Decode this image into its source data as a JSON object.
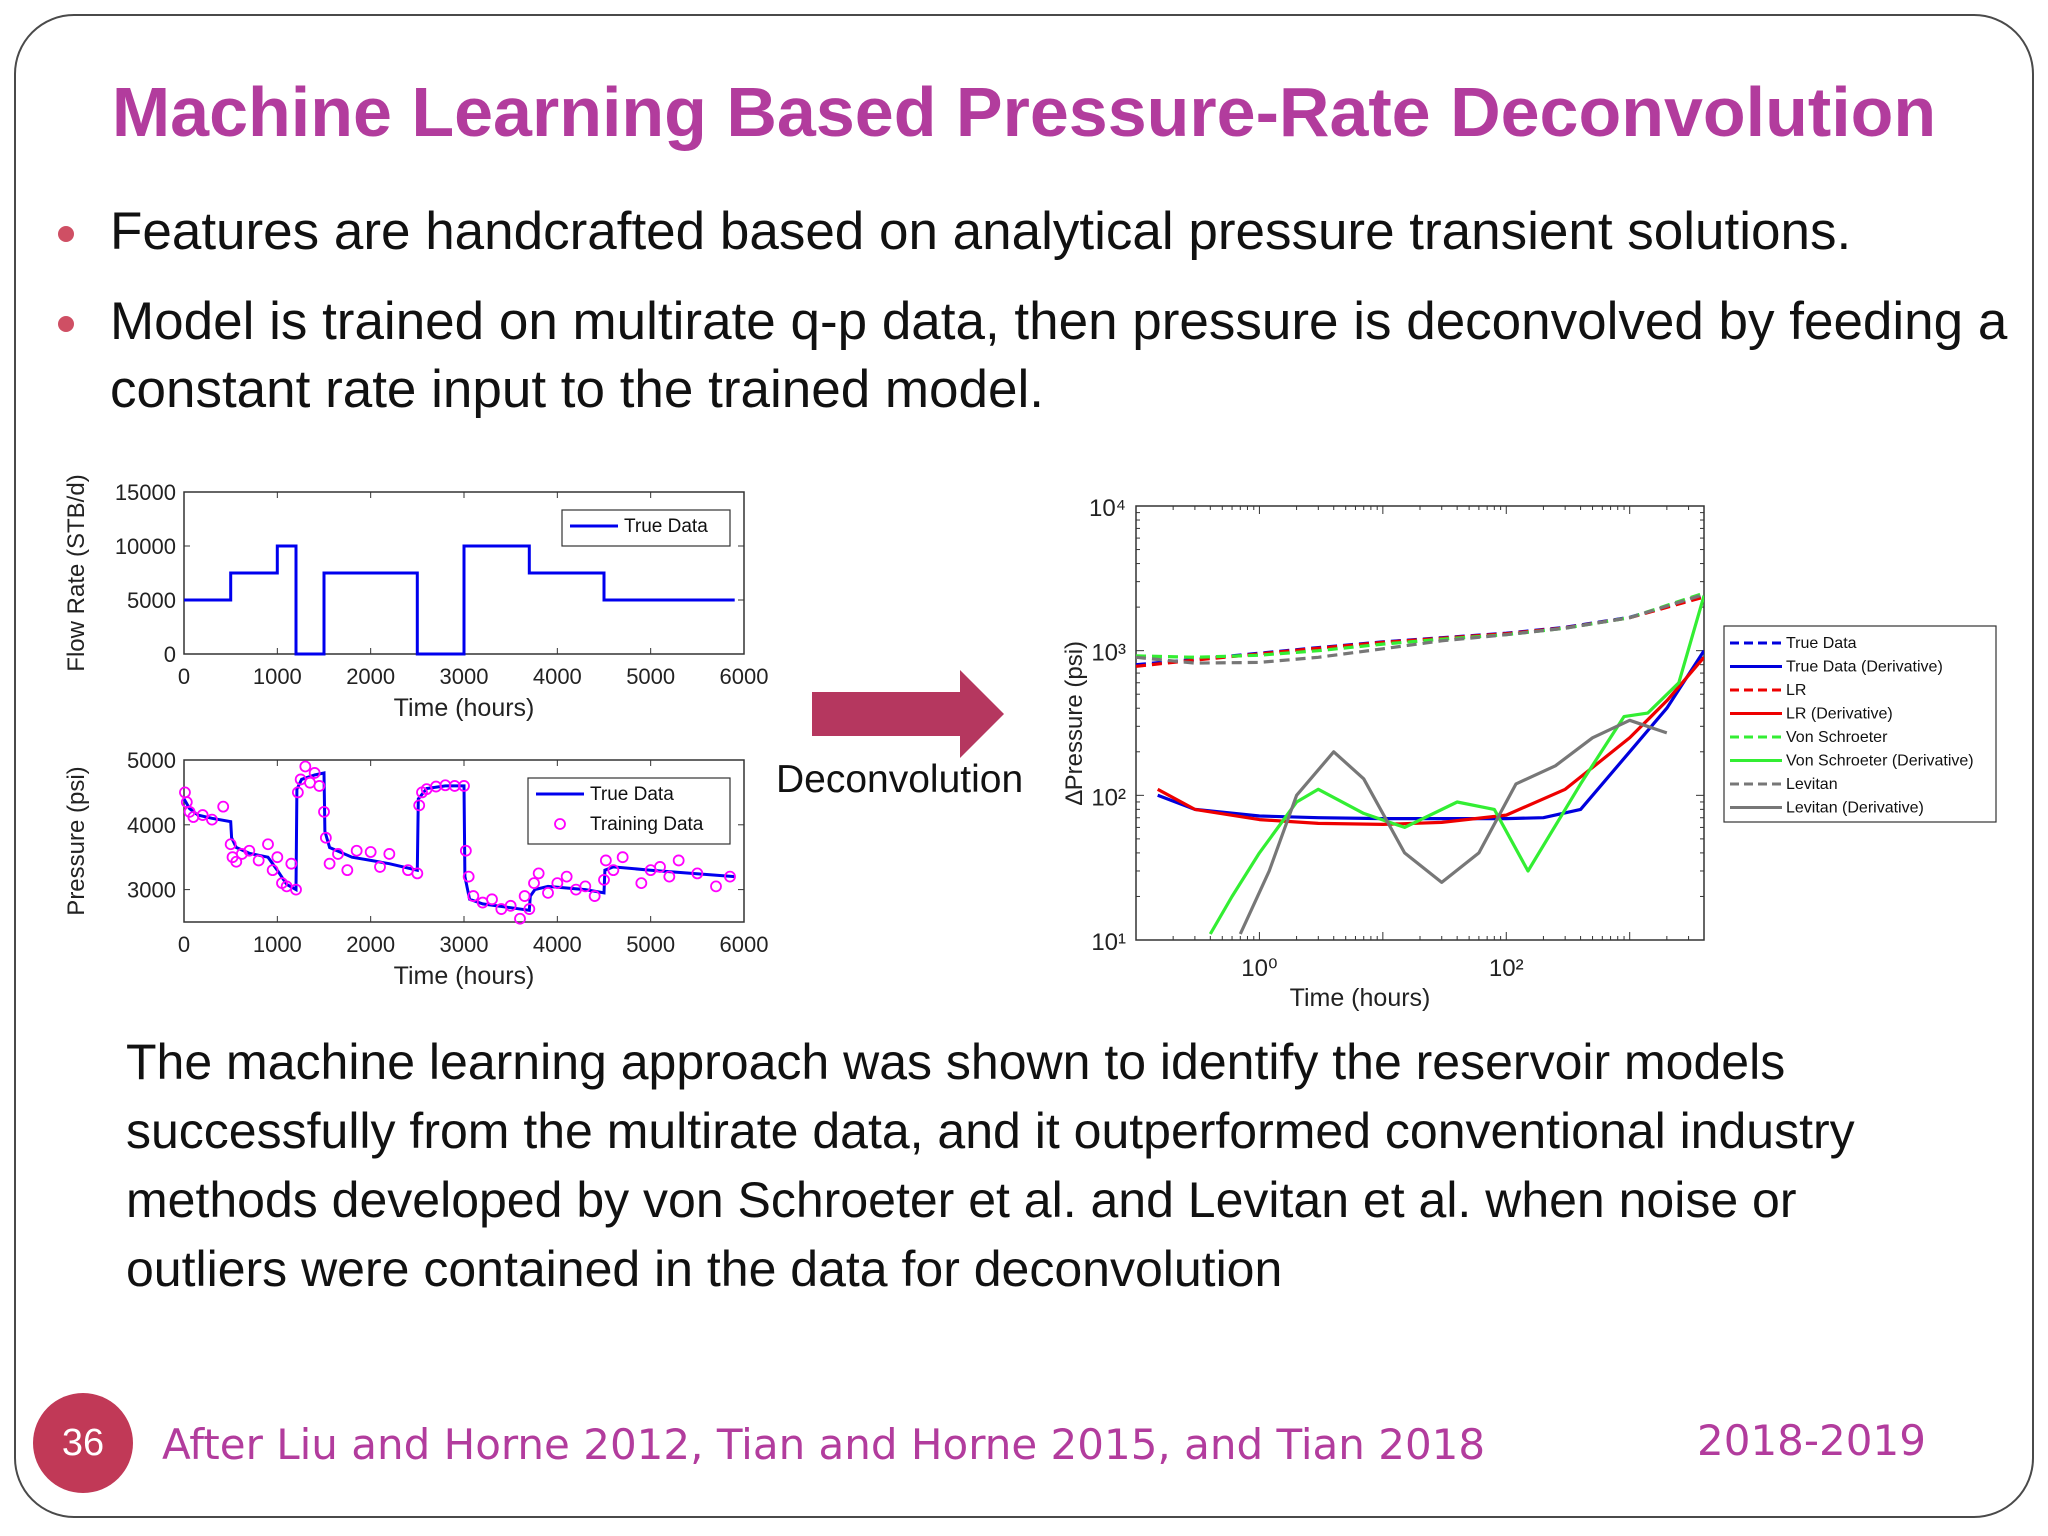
{
  "slide": {
    "title": "Machine Learning Based Pressure-Rate Deconvolution",
    "bullets": [
      "Features are handcrafted based on analytical pressure transient solutions.",
      "Model is trained on multirate q-p data, then pressure is deconvolved by feeding a constant rate input to the trained model."
    ],
    "arrow_label": "Deconvolution",
    "paragraph": "The machine learning approach was shown to identify the reservoir models successfully from the multirate data, and it outperformed conventional industry methods developed by von Schroeter et al. and Levitan et al. when noise or outliers were contained in the data for deconvolution",
    "footer": "After Liu and Horne 2012, Tian and Horne 2015, and Tian 2018",
    "year": "2018-2019",
    "page_number": "36",
    "colors": {
      "title": "#b23c9d",
      "accent": "#c13957",
      "bullet": "#cf4f64",
      "arrow": "#b5375f"
    }
  },
  "chart_data": [
    {
      "type": "line",
      "title": "",
      "xlabel": "Time (hours)",
      "ylabel": "Flow Rate (STB/d)",
      "xlim": [
        0,
        6000
      ],
      "ylim": [
        0,
        15000
      ],
      "xticks": [
        "0",
        "1000",
        "2000",
        "3000",
        "4000",
        "5000",
        "6000"
      ],
      "yticks": [
        "0",
        "5000",
        "10000",
        "15000"
      ],
      "legend": [
        "True Data"
      ],
      "series": [
        {
          "name": "True Data",
          "color": "#0000ee",
          "x": [
            0,
            500,
            500,
            1000,
            1000,
            1200,
            1200,
            1500,
            1500,
            2500,
            2500,
            3000,
            3000,
            3700,
            3700,
            4500,
            4500,
            5900
          ],
          "y": [
            5000,
            5000,
            7500,
            7500,
            10000,
            10000,
            0,
            0,
            7500,
            7500,
            0,
            0,
            10000,
            10000,
            7500,
            7500,
            5000,
            5000
          ]
        }
      ]
    },
    {
      "type": "scatter",
      "title": "",
      "xlabel": "Time (hours)",
      "ylabel": "Pressure (psi)",
      "xlim": [
        0,
        6000
      ],
      "ylim": [
        2500,
        5000
      ],
      "xticks": [
        "0",
        "1000",
        "2000",
        "3000",
        "4000",
        "5000",
        "6000"
      ],
      "yticks": [
        "3000",
        "4000",
        "5000"
      ],
      "legend": [
        "True Data",
        "Training Data"
      ],
      "series": [
        {
          "name": "True Data",
          "color": "#0000ee",
          "x": [
            0,
            60,
            150,
            300,
            500,
            510,
            560,
            700,
            900,
            1000,
            1100,
            1200,
            1210,
            1260,
            1400,
            1500,
            1510,
            1560,
            1800,
            2000,
            2200,
            2500,
            2510,
            2600,
            2800,
            3000,
            3010,
            3060,
            3200,
            3500,
            3700,
            3710,
            3760,
            3900,
            4300,
            4500,
            4510,
            4600,
            5000,
            5900
          ],
          "y": [
            4400,
            4250,
            4150,
            4100,
            4050,
            3800,
            3650,
            3560,
            3500,
            3300,
            3080,
            3000,
            4550,
            4700,
            4770,
            4800,
            3900,
            3650,
            3500,
            3450,
            3400,
            3300,
            4400,
            4560,
            4600,
            4600,
            3200,
            2850,
            2780,
            2720,
            2680,
            2900,
            3000,
            3050,
            3000,
            2950,
            3300,
            3350,
            3300,
            3200
          ]
        },
        {
          "name": "Training Data",
          "color": "#ff00ff",
          "x": [
            10,
            30,
            60,
            100,
            200,
            300,
            420,
            500,
            520,
            560,
            620,
            700,
            800,
            900,
            950,
            1000,
            1050,
            1100,
            1150,
            1200,
            1220,
            1250,
            1300,
            1350,
            1400,
            1450,
            1500,
            1520,
            1560,
            1650,
            1750,
            1850,
            2000,
            2100,
            2200,
            2400,
            2500,
            2520,
            2550,
            2600,
            2700,
            2800,
            2900,
            3000,
            3020,
            3050,
            3100,
            3200,
            3300,
            3400,
            3500,
            3600,
            3650,
            3700,
            3750,
            3800,
            3900,
            4000,
            4100,
            4200,
            4300,
            4400,
            4500,
            4520,
            4600,
            4700,
            4900,
            5000,
            5100,
            5200,
            5300,
            5500,
            5700,
            5850
          ],
          "y": [
            4500,
            4350,
            4200,
            4120,
            4150,
            4080,
            4280,
            3700,
            3500,
            3430,
            3550,
            3600,
            3450,
            3700,
            3300,
            3500,
            3100,
            3050,
            3400,
            3000,
            4500,
            4700,
            4900,
            4650,
            4800,
            4600,
            4200,
            3800,
            3400,
            3550,
            3300,
            3600,
            3580,
            3350,
            3550,
            3300,
            3250,
            4300,
            4500,
            4550,
            4590,
            4610,
            4600,
            4600,
            3600,
            3200,
            2900,
            2800,
            2850,
            2700,
            2750,
            2550,
            2900,
            2700,
            3100,
            3250,
            2950,
            3100,
            3200,
            3000,
            3050,
            2900,
            3150,
            3450,
            3300,
            3500,
            3100,
            3300,
            3350,
            3200,
            3450,
            3250,
            3050,
            3200
          ]
        }
      ]
    },
    {
      "type": "line",
      "title": "",
      "xlabel": "Time (hours)",
      "ylabel": "∆Pressure (psi)",
      "xscale": "log",
      "yscale": "log",
      "xlim": [
        0.1,
        4000
      ],
      "ylim": [
        10,
        10000
      ],
      "xticks": [
        "10⁰",
        "10²"
      ],
      "yticks": [
        "10¹",
        "10²",
        "10³",
        "10⁴"
      ],
      "legend": [
        "True Data",
        "True Data (Derivative)",
        "LR",
        "LR (Derivative)",
        "Von Schroeter",
        "Von Schroeter (Derivative)",
        "Levitan",
        "Levitan (Derivative)"
      ],
      "series": [
        {
          "name": "True Data",
          "color": "#0000dd",
          "dash": true,
          "x": [
            0.1,
            0.3,
            1,
            3,
            10,
            30,
            100,
            300,
            1000,
            4000
          ],
          "y": [
            800,
            870,
            960,
            1050,
            1150,
            1230,
            1320,
            1450,
            1700,
            2400
          ]
        },
        {
          "name": "True Data (Derivative)",
          "color": "#0000dd",
          "dash": false,
          "x": [
            0.15,
            0.3,
            1,
            3,
            10,
            30,
            100,
            200,
            400,
            1000,
            2000,
            4000
          ],
          "y": [
            100,
            80,
            72,
            70,
            69,
            69,
            69,
            70,
            80,
            200,
            400,
            1000
          ]
        },
        {
          "name": "LR",
          "color": "#ee0000",
          "dash": true,
          "x": [
            0.1,
            0.3,
            1,
            3,
            10,
            30,
            100,
            300,
            1000,
            4000
          ],
          "y": [
            780,
            860,
            950,
            1040,
            1140,
            1220,
            1310,
            1440,
            1690,
            2350
          ]
        },
        {
          "name": "LR (Derivative)",
          "color": "#ee0000",
          "dash": false,
          "x": [
            0.15,
            0.3,
            1,
            3,
            10,
            30,
            100,
            300,
            1000,
            2000,
            4000
          ],
          "y": [
            110,
            80,
            68,
            64,
            63,
            65,
            73,
            110,
            250,
            450,
            900
          ]
        },
        {
          "name": "Von Schroeter",
          "color": "#33ee33",
          "dash": true,
          "x": [
            0.1,
            0.3,
            1,
            3,
            10,
            30,
            100,
            300,
            1000,
            4000
          ],
          "y": [
            920,
            900,
            930,
            1000,
            1110,
            1200,
            1290,
            1430,
            1690,
            2500
          ]
        },
        {
          "name": "Von Schroeter (Derivative)",
          "color": "#33ee33",
          "dash": false,
          "x": [
            0.4,
            0.6,
            1,
            2,
            3,
            7,
            15,
            40,
            80,
            150,
            400,
            900,
            1400,
            2500,
            4000
          ],
          "y": [
            11,
            20,
            40,
            90,
            110,
            75,
            60,
            90,
            80,
            30,
            120,
            350,
            370,
            600,
            2400
          ]
        },
        {
          "name": "Levitan",
          "color": "#777777",
          "dash": true,
          "x": [
            0.1,
            0.3,
            1,
            3,
            10,
            30,
            100,
            300,
            1000,
            4000
          ],
          "y": [
            900,
            820,
            830,
            900,
            1030,
            1170,
            1290,
            1430,
            1690,
            2450
          ]
        },
        {
          "name": "Levitan (Derivative)",
          "color": "#777777",
          "dash": false,
          "x": [
            0.7,
            1.2,
            2,
            4,
            7,
            15,
            30,
            60,
            120,
            250,
            500,
            1000,
            2000
          ],
          "y": [
            11,
            30,
            100,
            200,
            130,
            40,
            25,
            40,
            120,
            160,
            250,
            330,
            270
          ]
        }
      ]
    }
  ]
}
